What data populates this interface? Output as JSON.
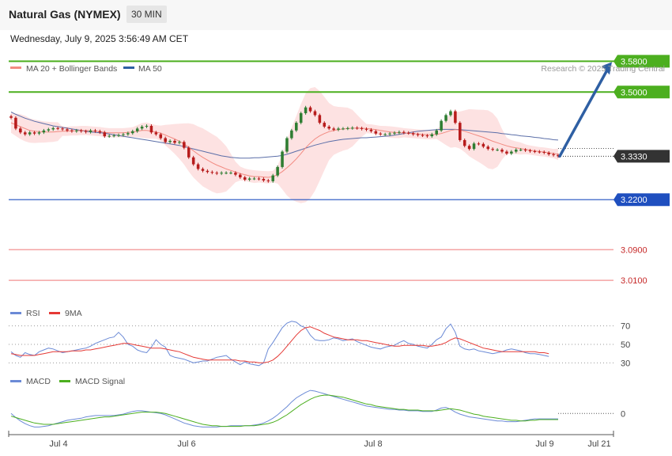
{
  "header": {
    "title": "Natural Gas (NYMEX)",
    "timeframe": "30 MIN",
    "datetime": "Wednesday, July 9, 2025 3:56:49 AM CET"
  },
  "credit": "Research © 2025 Trading Central",
  "colors": {
    "up_candle": "#2e7d32",
    "down_candle": "#b71c1c",
    "bollinger_fill": "#fde2e2",
    "ma20": "#f28b82",
    "ma50": "#5b6ea8",
    "resistance": "#4caf1f",
    "pivot": "#1f4fbf",
    "support": "#f4a3a3",
    "arrow": "#2e5fa3",
    "rsi": "#6b8ad6",
    "rsi_ma": "#e53935",
    "macd": "#6b8ad6",
    "macd_signal": "#4caf1f",
    "current_tag": "#333333"
  },
  "chart_data": [
    {
      "type": "candlestick",
      "panel": "price",
      "legend": [
        {
          "name": "MA 20 + Bollinger Bands",
          "color": "#f28b82"
        },
        {
          "name": "MA 50",
          "color": "#2e5fa3"
        }
      ],
      "x_ticks": [
        "Jul 4",
        "Jul 6",
        "Jul 8",
        "Jul 9",
        "Jul 21"
      ],
      "ylim": [
        2.965,
        3.62
      ],
      "current_price": {
        "label": "3.3330",
        "value": 3.333
      },
      "levels": [
        {
          "label": "3.5800",
          "value": 3.58,
          "kind": "resistance"
        },
        {
          "label": "3.5000",
          "value": 3.5,
          "kind": "resistance"
        },
        {
          "label": "3.2200",
          "value": 3.22,
          "kind": "pivot"
        },
        {
          "label": "3.0900",
          "value": 3.09,
          "kind": "support"
        },
        {
          "label": "3.0100",
          "value": 3.01,
          "kind": "support"
        }
      ],
      "close": [
        3.433,
        3.405,
        3.395,
        3.39,
        3.395,
        3.392,
        3.395,
        3.4,
        3.403,
        3.406,
        3.405,
        3.403,
        3.4,
        3.398,
        3.4,
        3.398,
        3.396,
        3.4,
        3.398,
        3.395,
        3.385,
        3.386,
        3.387,
        3.388,
        3.39,
        3.393,
        3.398,
        3.405,
        3.41,
        3.412,
        3.395,
        3.39,
        3.38,
        3.37,
        3.373,
        3.368,
        3.37,
        3.355,
        3.33,
        3.312,
        3.3,
        3.295,
        3.292,
        3.29,
        3.288,
        3.29,
        3.29,
        3.29,
        3.285,
        3.278,
        3.272,
        3.275,
        3.275,
        3.274,
        3.27,
        3.268,
        3.283,
        3.305,
        3.345,
        3.38,
        3.4,
        3.42,
        3.445,
        3.46,
        3.45,
        3.44,
        3.42,
        3.41,
        3.405,
        3.402,
        3.405,
        3.405,
        3.406,
        3.407,
        3.406,
        3.404,
        3.402,
        3.398,
        3.392,
        3.39,
        3.39,
        3.392,
        3.394,
        3.396,
        3.394,
        3.393,
        3.39,
        3.388,
        3.387,
        3.385,
        3.39,
        3.4,
        3.425,
        3.44,
        3.45,
        3.42,
        3.375,
        3.36,
        3.352,
        3.366,
        3.365,
        3.358,
        3.352,
        3.35,
        3.35,
        3.345,
        3.34,
        3.345,
        3.35,
        3.35,
        3.348,
        3.346,
        3.345,
        3.344,
        3.342,
        3.338,
        3.336,
        3.333
      ],
      "ma20": [
        3.42,
        3.415,
        3.41,
        3.405,
        3.4,
        3.398,
        3.397,
        3.396,
        3.396,
        3.396,
        3.397,
        3.398,
        3.398,
        3.399,
        3.399,
        3.4,
        3.4,
        3.399,
        3.398,
        3.397,
        3.395,
        3.394,
        3.394,
        3.394,
        3.394,
        3.395,
        3.396,
        3.398,
        3.4,
        3.4,
        3.398,
        3.396,
        3.393,
        3.388,
        3.383,
        3.378,
        3.372,
        3.365,
        3.356,
        3.347,
        3.338,
        3.33,
        3.323,
        3.316,
        3.31,
        3.305,
        3.3,
        3.296,
        3.292,
        3.288,
        3.285,
        3.282,
        3.28,
        3.28,
        3.279,
        3.278,
        3.28,
        3.285,
        3.293,
        3.303,
        3.314,
        3.326,
        3.34,
        3.355,
        3.367,
        3.378,
        3.386,
        3.392,
        3.397,
        3.4,
        3.402,
        3.404,
        3.405,
        3.406,
        3.406,
        3.406,
        3.405,
        3.404,
        3.402,
        3.4,
        3.398,
        3.396,
        3.395,
        3.394,
        3.394,
        3.393,
        3.392,
        3.391,
        3.39,
        3.389,
        3.389,
        3.39,
        3.392,
        3.396,
        3.4,
        3.402,
        3.401,
        3.398,
        3.394,
        3.39,
        3.386,
        3.382,
        3.377,
        3.372,
        3.368,
        3.364,
        3.36,
        3.357,
        3.355,
        3.353,
        3.351,
        3.349,
        3.347,
        3.345,
        3.344,
        3.342,
        3.34,
        3.338
      ],
      "ma50": [
        3.448,
        3.442,
        3.437,
        3.432,
        3.428,
        3.424,
        3.421,
        3.418,
        3.415,
        3.412,
        3.41,
        3.408,
        3.406,
        3.404,
        3.402,
        3.4,
        3.398,
        3.396,
        3.395,
        3.394,
        3.393,
        3.391,
        3.389,
        3.387,
        3.385,
        3.383,
        3.381,
        3.379,
        3.377,
        3.375,
        3.373,
        3.371,
        3.369,
        3.367,
        3.365,
        3.363,
        3.361,
        3.358,
        3.355,
        3.352,
        3.349,
        3.346,
        3.343,
        3.34,
        3.337,
        3.334,
        3.332,
        3.33,
        3.329,
        3.328,
        3.328,
        3.328,
        3.329,
        3.329,
        3.33,
        3.331,
        3.332,
        3.333,
        3.335,
        3.338,
        3.342,
        3.346,
        3.35,
        3.354,
        3.358,
        3.362,
        3.365,
        3.368,
        3.371,
        3.373,
        3.375,
        3.377,
        3.378,
        3.379,
        3.38,
        3.381,
        3.381,
        3.382,
        3.383,
        3.384,
        3.385,
        3.386,
        3.388,
        3.39,
        3.392,
        3.394,
        3.396,
        3.398,
        3.399,
        3.4,
        3.401,
        3.402,
        3.403,
        3.403,
        3.403,
        3.403,
        3.402,
        3.401,
        3.4,
        3.399,
        3.398,
        3.397,
        3.396,
        3.395,
        3.394,
        3.392,
        3.391,
        3.389,
        3.388,
        3.386,
        3.385,
        3.384,
        3.382,
        3.381,
        3.379,
        3.378,
        3.376,
        3.375
      ]
    },
    {
      "type": "line",
      "panel": "rsi",
      "legend": [
        {
          "name": "RSI",
          "color": "#6b8ad6"
        },
        {
          "name": "9MA",
          "color": "#e53935"
        }
      ],
      "levels": [
        70,
        50,
        30
      ],
      "ylim": [
        20,
        80
      ],
      "series": [
        {
          "name": "RSI",
          "values": [
            42,
            38,
            36,
            41,
            39,
            38,
            42,
            44,
            46,
            45,
            43,
            41,
            42,
            43,
            44,
            45,
            46,
            48,
            51,
            53,
            55,
            57,
            58,
            63,
            58,
            50,
            48,
            44,
            42,
            41,
            47,
            55,
            50,
            47,
            38,
            36,
            35,
            34,
            32,
            30,
            31,
            32,
            32,
            34,
            36,
            37,
            38,
            34,
            31,
            28,
            31,
            29,
            28,
            27,
            30,
            45,
            52,
            60,
            68,
            73,
            75,
            74,
            70,
            68,
            60,
            55,
            54,
            54,
            55,
            57,
            56,
            54,
            55,
            56,
            53,
            51,
            49,
            47,
            46,
            45,
            47,
            48,
            49,
            52,
            54,
            51,
            50,
            48,
            47,
            46,
            50,
            55,
            58,
            67,
            72,
            63,
            48,
            45,
            44,
            45,
            43,
            42,
            41,
            40,
            41,
            42,
            44,
            45,
            44,
            43,
            41,
            40,
            40,
            39,
            38,
            37
          ],
          "color": "#6b8ad6"
        },
        {
          "name": "9MA",
          "values": [
            40,
            39,
            38,
            38,
            38,
            38,
            39,
            40,
            41,
            42,
            42,
            42,
            42,
            43,
            43,
            43,
            44,
            44,
            45,
            46,
            47,
            48,
            49,
            50,
            51,
            51,
            50,
            49,
            48,
            47,
            46,
            46,
            46,
            45,
            44,
            43,
            42,
            40,
            38,
            36,
            35,
            34,
            33,
            33,
            33,
            33,
            33,
            33,
            33,
            32,
            32,
            31,
            31,
            30,
            30,
            31,
            33,
            37,
            42,
            48,
            54,
            60,
            65,
            68,
            69,
            67,
            65,
            62,
            60,
            58,
            57,
            56,
            55,
            55,
            55,
            54,
            54,
            53,
            52,
            51,
            50,
            49,
            48,
            48,
            49,
            49,
            49,
            49,
            49,
            48,
            48,
            49,
            50,
            52,
            55,
            57,
            56,
            54,
            52,
            50,
            48,
            46,
            45,
            44,
            43,
            42,
            42,
            42,
            42,
            42,
            42,
            42,
            42,
            41,
            41,
            40
          ],
          "color": "#e53935"
        }
      ]
    },
    {
      "type": "line",
      "panel": "macd",
      "legend": [
        {
          "name": "MACD",
          "color": "#6b8ad6"
        },
        {
          "name": "MACD Signal",
          "color": "#4caf1f"
        }
      ],
      "zero_label": "0",
      "ylim": [
        -0.03,
        0.04
      ],
      "series": [
        {
          "name": "MACD",
          "values": [
            0.0,
            -0.006,
            -0.011,
            -0.015,
            -0.018,
            -0.02,
            -0.02,
            -0.019,
            -0.018,
            -0.016,
            -0.014,
            -0.012,
            -0.01,
            -0.009,
            -0.008,
            -0.007,
            -0.005,
            -0.004,
            -0.003,
            -0.003,
            -0.003,
            -0.003,
            -0.003,
            -0.002,
            -0.001,
            0.001,
            0.003,
            0.004,
            0.004,
            0.003,
            0.002,
            0.001,
            0.0,
            -0.002,
            -0.005,
            -0.008,
            -0.011,
            -0.014,
            -0.016,
            -0.018,
            -0.019,
            -0.02,
            -0.02,
            -0.02,
            -0.02,
            -0.019,
            -0.019,
            -0.018,
            -0.018,
            -0.018,
            -0.018,
            -0.018,
            -0.017,
            -0.016,
            -0.014,
            -0.011,
            -0.007,
            -0.002,
            0.004,
            0.01,
            0.017,
            0.023,
            0.027,
            0.031,
            0.034,
            0.033,
            0.031,
            0.029,
            0.027,
            0.025,
            0.023,
            0.021,
            0.019,
            0.017,
            0.015,
            0.013,
            0.011,
            0.01,
            0.009,
            0.008,
            0.007,
            0.006,
            0.006,
            0.005,
            0.005,
            0.004,
            0.004,
            0.004,
            0.003,
            0.003,
            0.003,
            0.005,
            0.008,
            0.009,
            0.006,
            0.002,
            -0.001,
            -0.003,
            -0.005,
            -0.006,
            -0.007,
            -0.008,
            -0.009,
            -0.01,
            -0.011,
            -0.011,
            -0.012,
            -0.012,
            -0.012,
            -0.011,
            -0.01,
            -0.009,
            -0.008,
            -0.008,
            -0.008,
            -0.008,
            -0.008,
            -0.008
          ],
          "color": "#6b8ad6"
        },
        {
          "name": "MACD Signal",
          "values": [
            -0.004,
            -0.006,
            -0.008,
            -0.01,
            -0.012,
            -0.014,
            -0.015,
            -0.016,
            -0.016,
            -0.016,
            -0.015,
            -0.014,
            -0.013,
            -0.012,
            -0.011,
            -0.01,
            -0.009,
            -0.008,
            -0.007,
            -0.006,
            -0.005,
            -0.005,
            -0.004,
            -0.003,
            -0.002,
            -0.001,
            0.0,
            0.001,
            0.002,
            0.002,
            0.002,
            0.002,
            0.001,
            0.0,
            -0.002,
            -0.004,
            -0.006,
            -0.008,
            -0.01,
            -0.012,
            -0.014,
            -0.016,
            -0.017,
            -0.018,
            -0.018,
            -0.019,
            -0.019,
            -0.019,
            -0.019,
            -0.019,
            -0.018,
            -0.018,
            -0.018,
            -0.017,
            -0.016,
            -0.015,
            -0.013,
            -0.01,
            -0.006,
            -0.002,
            0.003,
            0.008,
            0.013,
            0.017,
            0.021,
            0.024,
            0.026,
            0.027,
            0.027,
            0.026,
            0.025,
            0.024,
            0.022,
            0.02,
            0.018,
            0.016,
            0.014,
            0.013,
            0.011,
            0.01,
            0.009,
            0.008,
            0.007,
            0.006,
            0.006,
            0.005,
            0.005,
            0.005,
            0.004,
            0.004,
            0.004,
            0.004,
            0.005,
            0.006,
            0.007,
            0.006,
            0.005,
            0.003,
            0.001,
            -0.001,
            -0.002,
            -0.004,
            -0.005,
            -0.006,
            -0.007,
            -0.008,
            -0.009,
            -0.01,
            -0.01,
            -0.011,
            -0.011,
            -0.01,
            -0.01,
            -0.009,
            -0.009,
            -0.009,
            -0.009,
            -0.009
          ],
          "color": "#4caf1f"
        }
      ]
    }
  ]
}
